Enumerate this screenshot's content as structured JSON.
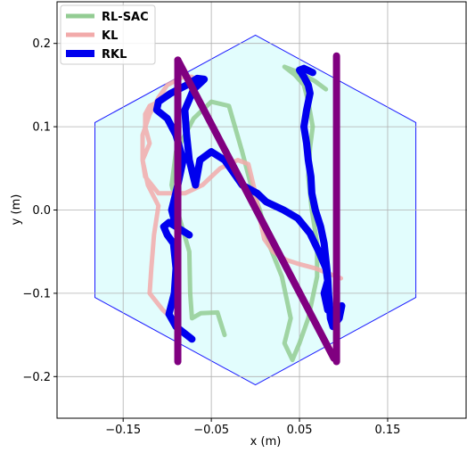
{
  "chart_data": {
    "type": "line",
    "title": "",
    "xlabel": "x (m)",
    "ylabel": "y (m)",
    "xlim": [
      -0.225,
      0.24
    ],
    "ylim": [
      -0.25,
      0.25
    ],
    "xticks": [
      -0.15,
      -0.05,
      0.05,
      0.15
    ],
    "xtick_labels": [
      "−0.15",
      "−0.05",
      "0.05",
      "0.15"
    ],
    "yticks": [
      -0.2,
      -0.1,
      0.0,
      0.1,
      0.2
    ],
    "ytick_labels": [
      "−0.2",
      "−0.1",
      "0.0",
      "0.1",
      "0.2"
    ],
    "grid": true,
    "legend_position": "top-left",
    "workspace": {
      "shape": "hexagon",
      "vertices": [
        [
          0.0,
          0.21
        ],
        [
          0.182,
          0.105
        ],
        [
          0.182,
          -0.105
        ],
        [
          0.0,
          -0.21
        ],
        [
          -0.182,
          -0.105
        ],
        [
          -0.182,
          0.105
        ]
      ],
      "fill": "#e2fdfd",
      "edge": "#1a1aff"
    },
    "target": {
      "color": "#800080",
      "segments": [
        [
          [
            -0.088,
            0.18
          ],
          [
            -0.088,
            -0.182
          ]
        ],
        [
          [
            -0.088,
            0.18
          ],
          [
            0.089,
            -0.178
          ]
        ],
        [
          [
            0.092,
            0.185
          ],
          [
            0.092,
            -0.182
          ]
        ]
      ]
    },
    "series": [
      {
        "name": "RL-SAC",
        "color": "#93cc93",
        "points": [
          [
            -0.035,
            -0.15
          ],
          [
            -0.043,
            -0.123
          ],
          [
            -0.062,
            -0.124
          ],
          [
            -0.072,
            -0.13
          ],
          [
            -0.074,
            -0.1
          ],
          [
            -0.075,
            -0.05
          ],
          [
            -0.086,
            -0.01
          ],
          [
            -0.095,
            0.03
          ],
          [
            -0.09,
            0.07
          ],
          [
            -0.07,
            0.11
          ],
          [
            -0.05,
            0.13
          ],
          [
            -0.03,
            0.125
          ],
          [
            -0.015,
            0.07
          ],
          [
            -0.005,
            0.03
          ],
          [
            0.005,
            0.0
          ],
          [
            0.015,
            -0.04
          ],
          [
            0.03,
            -0.08
          ],
          [
            0.04,
            -0.13
          ],
          [
            0.033,
            -0.16
          ],
          [
            0.042,
            -0.18
          ],
          [
            0.05,
            -0.16
          ],
          [
            0.06,
            -0.13
          ],
          [
            0.07,
            -0.08
          ],
          [
            0.07,
            -0.04
          ],
          [
            0.064,
            0.0
          ],
          [
            0.06,
            0.04
          ],
          [
            0.062,
            0.075
          ],
          [
            0.065,
            0.1
          ],
          [
            0.06,
            0.13
          ],
          [
            0.055,
            0.15
          ],
          [
            0.045,
            0.162
          ],
          [
            0.033,
            0.172
          ],
          [
            0.05,
            0.165
          ],
          [
            0.067,
            0.155
          ],
          [
            0.08,
            0.145
          ]
        ]
      },
      {
        "name": "KL",
        "color": "#f2aaaa",
        "points": [
          [
            0.097,
            -0.082
          ],
          [
            0.08,
            -0.075
          ],
          [
            0.068,
            -0.07
          ],
          [
            0.05,
            -0.065
          ],
          [
            0.035,
            -0.06
          ],
          [
            0.02,
            -0.05
          ],
          [
            0.01,
            -0.035
          ],
          [
            0.005,
            -0.01
          ],
          [
            0.0,
            0.02
          ],
          [
            -0.008,
            0.055
          ],
          [
            -0.02,
            0.06
          ],
          [
            -0.04,
            0.05
          ],
          [
            -0.06,
            0.03
          ],
          [
            -0.08,
            0.02
          ],
          [
            -0.11,
            0.02
          ],
          [
            -0.125,
            0.04
          ],
          [
            -0.128,
            0.06
          ],
          [
            -0.12,
            0.08
          ],
          [
            -0.125,
            0.1
          ],
          [
            -0.125,
            0.115
          ],
          [
            -0.12,
            0.125
          ],
          [
            -0.11,
            0.13
          ],
          [
            -0.1,
            0.14
          ],
          [
            -0.08,
            0.15
          ],
          [
            -0.072,
            0.16
          ],
          [
            -0.082,
            0.16
          ],
          [
            -0.1,
            0.15
          ],
          [
            -0.11,
            0.135
          ],
          [
            -0.12,
            0.115
          ],
          [
            -0.128,
            0.09
          ],
          [
            -0.128,
            0.06
          ],
          [
            -0.122,
            0.03
          ],
          [
            -0.11,
            0.005
          ],
          [
            -0.115,
            -0.03
          ],
          [
            -0.118,
            -0.07
          ],
          [
            -0.12,
            -0.1
          ],
          [
            -0.105,
            -0.12
          ],
          [
            -0.095,
            -0.13
          ],
          [
            -0.09,
            -0.14
          ]
        ]
      },
      {
        "name": "RKL",
        "color": "#0000ee",
        "points": [
          [
            -0.072,
            -0.155
          ],
          [
            -0.09,
            -0.14
          ],
          [
            -0.098,
            -0.125
          ],
          [
            -0.092,
            -0.1
          ],
          [
            -0.09,
            -0.07
          ],
          [
            -0.093,
            -0.04
          ],
          [
            -0.1,
            -0.03
          ],
          [
            -0.104,
            -0.02
          ],
          [
            -0.098,
            -0.015
          ],
          [
            -0.09,
            -0.02
          ],
          [
            -0.075,
            -0.03
          ],
          [
            -0.09,
            -0.02
          ],
          [
            -0.095,
            0.0
          ],
          [
            -0.088,
            0.03
          ],
          [
            -0.082,
            0.06
          ],
          [
            -0.09,
            0.09
          ],
          [
            -0.1,
            0.11
          ],
          [
            -0.112,
            0.12
          ],
          [
            -0.11,
            0.13
          ],
          [
            -0.096,
            0.14
          ],
          [
            -0.078,
            0.15
          ],
          [
            -0.066,
            0.158
          ],
          [
            -0.058,
            0.157
          ],
          [
            -0.07,
            0.145
          ],
          [
            -0.08,
            0.12
          ],
          [
            -0.078,
            0.09
          ],
          [
            -0.075,
            0.06
          ],
          [
            -0.068,
            0.03
          ],
          [
            -0.063,
            0.06
          ],
          [
            -0.05,
            0.07
          ],
          [
            -0.035,
            0.06
          ],
          [
            -0.015,
            0.03
          ],
          [
            0.002,
            0.02
          ],
          [
            0.012,
            0.01
          ],
          [
            0.032,
            0.0
          ],
          [
            0.048,
            -0.01
          ],
          [
            0.062,
            -0.028
          ],
          [
            0.072,
            -0.05
          ],
          [
            0.08,
            -0.07
          ],
          [
            0.082,
            -0.085
          ],
          [
            0.078,
            -0.1
          ],
          [
            0.082,
            -0.12
          ],
          [
            0.09,
            -0.12
          ],
          [
            0.098,
            -0.115
          ],
          [
            0.095,
            -0.13
          ],
          [
            0.088,
            -0.14
          ],
          [
            0.085,
            -0.13
          ],
          [
            0.083,
            -0.1
          ],
          [
            0.082,
            -0.08
          ],
          [
            0.08,
            -0.06
          ],
          [
            0.078,
            -0.04
          ],
          [
            0.074,
            -0.02
          ],
          [
            0.068,
            0.0
          ],
          [
            0.064,
            0.02
          ],
          [
            0.063,
            0.04
          ],
          [
            0.06,
            0.06
          ],
          [
            0.058,
            0.08
          ],
          [
            0.055,
            0.1
          ],
          [
            0.058,
            0.12
          ],
          [
            0.062,
            0.14
          ],
          [
            0.06,
            0.15
          ],
          [
            0.055,
            0.16
          ],
          [
            0.05,
            0.168
          ],
          [
            0.055,
            0.17
          ],
          [
            0.065,
            0.165
          ]
        ]
      }
    ]
  }
}
